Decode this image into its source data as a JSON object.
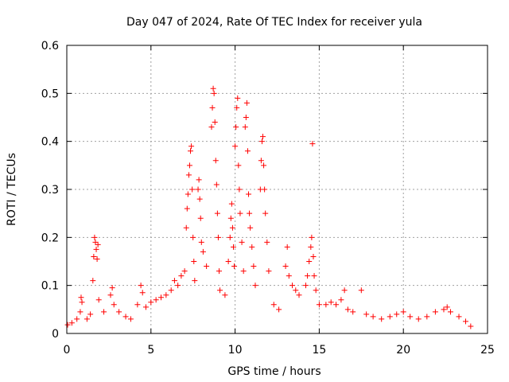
{
  "chart_data": {
    "type": "scatter",
    "title": "Day 047 of 2024, Rate Of TEC Index for receiver yula",
    "xlabel": "GPS time / hours",
    "ylabel": "ROTI / TECUs",
    "xlim": [
      0,
      25
    ],
    "ylim": [
      0,
      0.6
    ],
    "x_ticks": [
      "0",
      "5",
      "10",
      "15",
      "20",
      "25"
    ],
    "y_ticks": [
      "0",
      "0.1",
      "0.2",
      "0.3",
      "0.4",
      "0.5",
      "0.6"
    ],
    "x_tick_values": [
      0,
      5,
      10,
      15,
      20,
      25
    ],
    "y_tick_values": [
      0,
      0.1,
      0.2,
      0.3,
      0.4,
      0.5,
      0.6
    ],
    "grid": true,
    "marker": "plus",
    "point_color": "#ff0000",
    "series": [
      {
        "points": [
          [
            0.05,
            0.018
          ],
          [
            0.3,
            0.022
          ],
          [
            0.6,
            0.03
          ],
          [
            0.8,
            0.045
          ],
          [
            0.85,
            0.075
          ],
          [
            0.9,
            0.065
          ],
          [
            1.2,
            0.03
          ],
          [
            1.4,
            0.04
          ],
          [
            1.55,
            0.11
          ],
          [
            1.6,
            0.16
          ],
          [
            1.65,
            0.2
          ],
          [
            1.7,
            0.19
          ],
          [
            1.75,
            0.175
          ],
          [
            1.8,
            0.155
          ],
          [
            1.85,
            0.185
          ],
          [
            1.9,
            0.07
          ],
          [
            2.2,
            0.045
          ],
          [
            2.6,
            0.08
          ],
          [
            2.7,
            0.095
          ],
          [
            2.8,
            0.06
          ],
          [
            3.1,
            0.045
          ],
          [
            3.5,
            0.035
          ],
          [
            3.8,
            0.03
          ],
          [
            4.2,
            0.06
          ],
          [
            4.4,
            0.1
          ],
          [
            4.5,
            0.085
          ],
          [
            4.7,
            0.055
          ],
          [
            5.0,
            0.065
          ],
          [
            5.3,
            0.07
          ],
          [
            5.6,
            0.075
          ],
          [
            5.9,
            0.08
          ],
          [
            6.2,
            0.09
          ],
          [
            6.4,
            0.11
          ],
          [
            6.6,
            0.1
          ],
          [
            6.8,
            0.12
          ],
          [
            7.0,
            0.13
          ],
          [
            7.1,
            0.22
          ],
          [
            7.15,
            0.26
          ],
          [
            7.2,
            0.29
          ],
          [
            7.25,
            0.33
          ],
          [
            7.3,
            0.35
          ],
          [
            7.35,
            0.38
          ],
          [
            7.4,
            0.39
          ],
          [
            7.45,
            0.3
          ],
          [
            7.5,
            0.2
          ],
          [
            7.55,
            0.15
          ],
          [
            7.6,
            0.11
          ],
          [
            7.8,
            0.3
          ],
          [
            7.85,
            0.32
          ],
          [
            7.9,
            0.28
          ],
          [
            7.95,
            0.24
          ],
          [
            8.0,
            0.19
          ],
          [
            8.1,
            0.17
          ],
          [
            8.3,
            0.14
          ],
          [
            8.6,
            0.43
          ],
          [
            8.65,
            0.47
          ],
          [
            8.7,
            0.51
          ],
          [
            8.75,
            0.5
          ],
          [
            8.8,
            0.44
          ],
          [
            8.85,
            0.36
          ],
          [
            8.9,
            0.31
          ],
          [
            8.95,
            0.25
          ],
          [
            9.0,
            0.2
          ],
          [
            9.05,
            0.13
          ],
          [
            9.1,
            0.09
          ],
          [
            9.4,
            0.08
          ],
          [
            9.6,
            0.15
          ],
          [
            9.7,
            0.2
          ],
          [
            9.75,
            0.24
          ],
          [
            9.8,
            0.27
          ],
          [
            9.85,
            0.22
          ],
          [
            9.9,
            0.18
          ],
          [
            9.95,
            0.14
          ],
          [
            10.0,
            0.39
          ],
          [
            10.05,
            0.43
          ],
          [
            10.1,
            0.47
          ],
          [
            10.15,
            0.49
          ],
          [
            10.2,
            0.35
          ],
          [
            10.25,
            0.3
          ],
          [
            10.3,
            0.25
          ],
          [
            10.4,
            0.19
          ],
          [
            10.5,
            0.13
          ],
          [
            10.6,
            0.43
          ],
          [
            10.65,
            0.45
          ],
          [
            10.7,
            0.48
          ],
          [
            10.75,
            0.38
          ],
          [
            10.8,
            0.29
          ],
          [
            10.85,
            0.25
          ],
          [
            10.9,
            0.22
          ],
          [
            11.0,
            0.18
          ],
          [
            11.1,
            0.14
          ],
          [
            11.2,
            0.1
          ],
          [
            11.5,
            0.3
          ],
          [
            11.55,
            0.36
          ],
          [
            11.6,
            0.4
          ],
          [
            11.65,
            0.41
          ],
          [
            11.7,
            0.35
          ],
          [
            11.75,
            0.3
          ],
          [
            11.8,
            0.25
          ],
          [
            11.9,
            0.19
          ],
          [
            12.0,
            0.13
          ],
          [
            12.3,
            0.06
          ],
          [
            12.6,
            0.05
          ],
          [
            13.0,
            0.14
          ],
          [
            13.1,
            0.18
          ],
          [
            13.2,
            0.12
          ],
          [
            13.4,
            0.1
          ],
          [
            13.6,
            0.09
          ],
          [
            13.8,
            0.08
          ],
          [
            14.2,
            0.1
          ],
          [
            14.3,
            0.12
          ],
          [
            14.4,
            0.15
          ],
          [
            14.5,
            0.18
          ],
          [
            14.55,
            0.2
          ],
          [
            14.6,
            0.395
          ],
          [
            14.65,
            0.16
          ],
          [
            14.7,
            0.12
          ],
          [
            14.8,
            0.09
          ],
          [
            15.0,
            0.06
          ],
          [
            15.4,
            0.06
          ],
          [
            15.7,
            0.065
          ],
          [
            16.0,
            0.06
          ],
          [
            16.3,
            0.07
          ],
          [
            16.5,
            0.09
          ],
          [
            16.7,
            0.05
          ],
          [
            17.0,
            0.045
          ],
          [
            17.5,
            0.09
          ],
          [
            17.8,
            0.04
          ],
          [
            18.2,
            0.035
          ],
          [
            18.7,
            0.03
          ],
          [
            19.2,
            0.035
          ],
          [
            19.6,
            0.04
          ],
          [
            20.0,
            0.045
          ],
          [
            20.4,
            0.035
          ],
          [
            20.9,
            0.03
          ],
          [
            21.4,
            0.035
          ],
          [
            21.9,
            0.045
          ],
          [
            22.4,
            0.05
          ],
          [
            22.6,
            0.055
          ],
          [
            22.8,
            0.045
          ],
          [
            23.3,
            0.035
          ],
          [
            23.7,
            0.025
          ],
          [
            24.0,
            0.015
          ]
        ]
      }
    ]
  }
}
